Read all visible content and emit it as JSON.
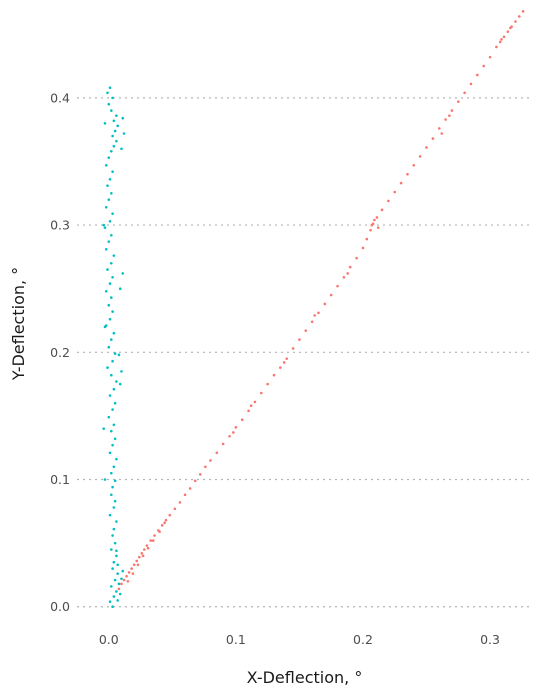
{
  "chart_data": {
    "type": "scatter",
    "title": "",
    "xlabel": "X-Deflection, °",
    "ylabel": "Y-Deflection, °",
    "xlim": [
      -0.025,
      0.333
    ],
    "ylim": [
      -0.012,
      0.473
    ],
    "x_ticks": [
      0.0,
      0.1,
      0.2,
      0.3
    ],
    "x_tick_labels": [
      "0.0",
      "0.1",
      "0.2",
      "0.3"
    ],
    "y_ticks": [
      0.0,
      0.1,
      0.2,
      0.3,
      0.4
    ],
    "y_tick_labels": [
      "0.0",
      "0.1",
      "0.2",
      "0.3",
      "0.4"
    ],
    "grid": "horizontal dotted",
    "legend": "none",
    "series": [
      {
        "color": "#00BFC4",
        "description": "near-vertical cloud along x≈0",
        "points": [
          [
            0.003,
            0.0
          ],
          [
            0.001,
            0.004
          ],
          [
            0.004,
            0.008
          ],
          [
            0.006,
            0.012
          ],
          [
            0.002,
            0.016
          ],
          [
            0.005,
            0.021
          ],
          [
            0.007,
            0.026
          ],
          [
            0.003,
            0.03
          ],
          [
            0.004,
            0.035
          ],
          [
            0.006,
            0.04
          ],
          [
            0.002,
            0.045
          ],
          [
            0.005,
            0.05
          ],
          [
            0.003,
            0.056
          ],
          [
            0.004,
            0.061
          ],
          [
            0.006,
            0.067
          ],
          [
            0.001,
            0.072
          ],
          [
            0.004,
            0.078
          ],
          [
            0.005,
            0.083
          ],
          [
            0.002,
            0.088
          ],
          [
            0.003,
            0.094
          ],
          [
            0.005,
            0.099
          ],
          [
            0.002,
            0.105
          ],
          [
            0.004,
            0.11
          ],
          [
            0.006,
            0.116
          ],
          [
            0.001,
            0.121
          ],
          [
            0.003,
            0.127
          ],
          [
            0.005,
            0.132
          ],
          [
            0.002,
            0.138
          ],
          [
            0.004,
            0.143
          ],
          [
            0.0,
            0.149
          ],
          [
            0.003,
            0.155
          ],
          [
            0.005,
            0.16
          ],
          [
            0.001,
            0.166
          ],
          [
            0.004,
            0.171
          ],
          [
            0.006,
            0.177
          ],
          [
            0.002,
            0.182
          ],
          [
            -0.001,
            0.188
          ],
          [
            0.003,
            0.193
          ],
          [
            0.005,
            0.199
          ],
          [
            0.0,
            0.204
          ],
          [
            0.002,
            0.21
          ],
          [
            0.004,
            0.215
          ],
          [
            -0.002,
            0.221
          ],
          [
            0.001,
            0.226
          ],
          [
            0.003,
            0.232
          ],
          [
            0.0,
            0.237
          ],
          [
            0.002,
            0.243
          ],
          [
            -0.002,
            0.248
          ],
          [
            0.001,
            0.254
          ],
          [
            0.003,
            0.259
          ],
          [
            -0.001,
            0.265
          ],
          [
            0.002,
            0.27
          ],
          [
            0.004,
            0.276
          ],
          [
            -0.002,
            0.281
          ],
          [
            0.0,
            0.287
          ],
          [
            0.002,
            0.292
          ],
          [
            -0.003,
            0.298
          ],
          [
            0.001,
            0.303
          ],
          [
            0.003,
            0.309
          ],
          [
            -0.002,
            0.314
          ],
          [
            0.0,
            0.32
          ],
          [
            0.002,
            0.325
          ],
          [
            -0.001,
            0.331
          ],
          [
            0.001,
            0.336
          ],
          [
            0.003,
            0.342
          ],
          [
            -0.002,
            0.347
          ],
          [
            0.0,
            0.353
          ],
          [
            0.002,
            0.358
          ],
          [
            0.004,
            0.362
          ],
          [
            0.006,
            0.366
          ],
          [
            0.003,
            0.37
          ],
          [
            0.005,
            0.374
          ],
          [
            0.007,
            0.378
          ],
          [
            0.004,
            0.382
          ],
          [
            0.006,
            0.386
          ],
          [
            0.002,
            0.39
          ],
          [
            0.0,
            0.395
          ],
          [
            0.003,
            0.4
          ],
          [
            -0.001,
            0.404
          ],
          [
            0.001,
            0.408
          ],
          [
            0.008,
            0.018
          ],
          [
            0.009,
            0.01
          ],
          [
            0.01,
            0.022
          ],
          [
            0.007,
            0.005
          ],
          [
            0.011,
            0.028
          ],
          [
            0.009,
            0.175
          ],
          [
            0.01,
            0.185
          ],
          [
            0.008,
            0.198
          ],
          [
            0.009,
            0.25
          ],
          [
            0.011,
            0.262
          ],
          [
            0.01,
            0.36
          ],
          [
            0.012,
            0.372
          ],
          [
            0.011,
            0.384
          ],
          [
            -0.003,
            0.1
          ],
          [
            -0.004,
            0.14
          ],
          [
            -0.003,
            0.22
          ],
          [
            -0.004,
            0.3
          ],
          [
            -0.003,
            0.38
          ],
          [
            0.006,
            0.044
          ],
          [
            0.007,
            0.033
          ]
        ]
      },
      {
        "color": "#F8766D",
        "description": "diagonal band from origin to upper right",
        "points": [
          [
            0.008,
            0.014
          ],
          [
            0.01,
            0.018
          ],
          [
            0.012,
            0.021
          ],
          [
            0.014,
            0.024
          ],
          [
            0.016,
            0.027
          ],
          [
            0.018,
            0.03
          ],
          [
            0.02,
            0.033
          ],
          [
            0.022,
            0.036
          ],
          [
            0.024,
            0.039
          ],
          [
            0.026,
            0.042
          ],
          [
            0.028,
            0.045
          ],
          [
            0.03,
            0.048
          ],
          [
            0.033,
            0.052
          ],
          [
            0.036,
            0.056
          ],
          [
            0.039,
            0.06
          ],
          [
            0.042,
            0.064
          ],
          [
            0.045,
            0.068
          ],
          [
            0.048,
            0.072
          ],
          [
            0.052,
            0.077
          ],
          [
            0.056,
            0.082
          ],
          [
            0.06,
            0.088
          ],
          [
            0.064,
            0.093
          ],
          [
            0.068,
            0.099
          ],
          [
            0.072,
            0.104
          ],
          [
            0.076,
            0.11
          ],
          [
            0.08,
            0.115
          ],
          [
            0.085,
            0.121
          ],
          [
            0.09,
            0.128
          ],
          [
            0.095,
            0.134
          ],
          [
            0.1,
            0.141
          ],
          [
            0.105,
            0.147
          ],
          [
            0.11,
            0.154
          ],
          [
            0.115,
            0.161
          ],
          [
            0.12,
            0.168
          ],
          [
            0.125,
            0.175
          ],
          [
            0.13,
            0.182
          ],
          [
            0.135,
            0.188
          ],
          [
            0.14,
            0.195
          ],
          [
            0.145,
            0.203
          ],
          [
            0.15,
            0.21
          ],
          [
            0.155,
            0.217
          ],
          [
            0.16,
            0.224
          ],
          [
            0.165,
            0.231
          ],
          [
            0.17,
            0.238
          ],
          [
            0.175,
            0.245
          ],
          [
            0.18,
            0.252
          ],
          [
            0.185,
            0.259
          ],
          [
            0.19,
            0.267
          ],
          [
            0.195,
            0.274
          ],
          [
            0.2,
            0.282
          ],
          [
            0.203,
            0.289
          ],
          [
            0.206,
            0.296
          ],
          [
            0.208,
            0.301
          ],
          [
            0.211,
            0.306
          ],
          [
            0.215,
            0.312
          ],
          [
            0.22,
            0.319
          ],
          [
            0.225,
            0.326
          ],
          [
            0.23,
            0.333
          ],
          [
            0.235,
            0.34
          ],
          [
            0.24,
            0.347
          ],
          [
            0.245,
            0.354
          ],
          [
            0.25,
            0.361
          ],
          [
            0.255,
            0.368
          ],
          [
            0.26,
            0.376
          ],
          [
            0.265,
            0.383
          ],
          [
            0.27,
            0.39
          ],
          [
            0.275,
            0.397
          ],
          [
            0.28,
            0.404
          ],
          [
            0.285,
            0.411
          ],
          [
            0.29,
            0.418
          ],
          [
            0.295,
            0.425
          ],
          [
            0.3,
            0.432
          ],
          [
            0.305,
            0.44
          ],
          [
            0.308,
            0.444
          ],
          [
            0.311,
            0.448
          ],
          [
            0.314,
            0.452
          ],
          [
            0.317,
            0.456
          ],
          [
            0.32,
            0.46
          ],
          [
            0.323,
            0.464
          ],
          [
            0.326,
            0.468
          ],
          [
            0.015,
            0.02
          ],
          [
            0.019,
            0.026
          ],
          [
            0.023,
            0.033
          ],
          [
            0.027,
            0.04
          ],
          [
            0.031,
            0.046
          ],
          [
            0.035,
            0.052
          ],
          [
            0.04,
            0.059
          ],
          [
            0.044,
            0.066
          ],
          [
            0.098,
            0.137
          ],
          [
            0.112,
            0.158
          ],
          [
            0.138,
            0.192
          ],
          [
            0.162,
            0.229
          ],
          [
            0.188,
            0.262
          ],
          [
            0.207,
            0.3
          ],
          [
            0.209,
            0.304
          ],
          [
            0.212,
            0.298
          ],
          [
            0.262,
            0.372
          ],
          [
            0.268,
            0.386
          ],
          [
            0.309,
            0.446
          ],
          [
            0.316,
            0.455
          ]
        ]
      }
    ]
  }
}
